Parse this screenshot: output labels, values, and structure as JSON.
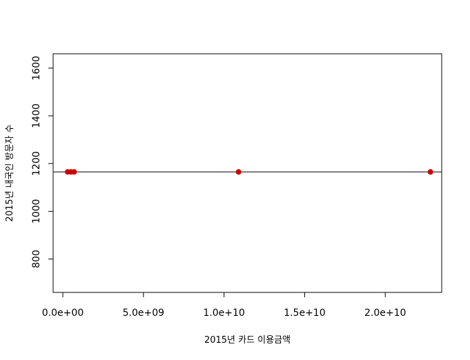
{
  "chart_data": {
    "type": "scatter",
    "title": "",
    "xlabel": "2015년 카드 이용금액",
    "ylabel": "2015년 내국인 방문자 수",
    "xlim": [
      -600000000,
      23500000000
    ],
    "ylim": [
      660,
      1660
    ],
    "x_ticks": [
      0,
      5000000000,
      10000000000,
      15000000000,
      20000000000
    ],
    "x_tick_labels": [
      "0.0e+00",
      "5.0e+09",
      "1.0e+10",
      "1.5e+10",
      "2.0e+10"
    ],
    "y_ticks": [
      800,
      1000,
      1200,
      1400,
      1600
    ],
    "y_tick_labels": [
      "800",
      "1000",
      "1200",
      "1400",
      "1600"
    ],
    "grid": false,
    "point_color": "#cc0000",
    "line_color": "#000000",
    "hline_y": 1165,
    "series": [
      {
        "x": [
          300000000,
          500000000,
          700000000,
          10900000000,
          22800000000
        ],
        "y": [
          1165,
          1165,
          1165,
          1165,
          1165
        ]
      }
    ]
  }
}
